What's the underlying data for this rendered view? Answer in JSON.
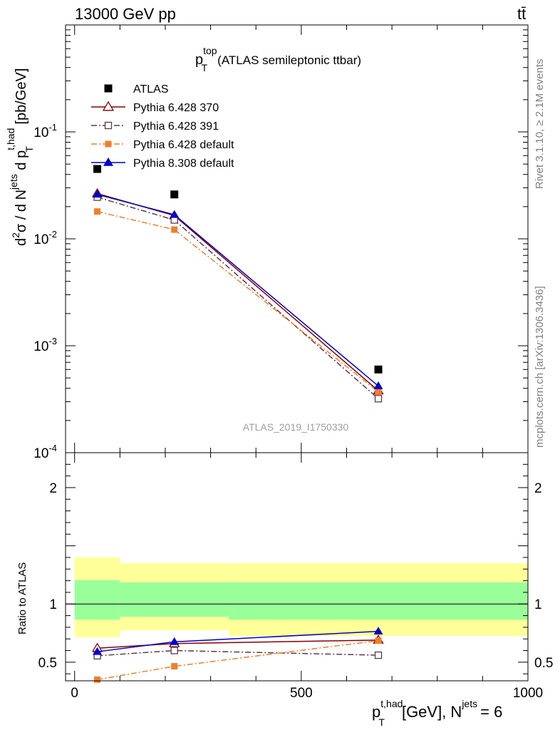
{
  "header": {
    "left": "13000 GeV pp",
    "right": "tt̄"
  },
  "side_labels": {
    "rivet": "Rivet 3.1.10, ≥ 2.1M events",
    "mcplots": "mcplots.cern.ch [arXiv:1306.3436]"
  },
  "chart_data": [
    {
      "type": "line",
      "panel": "main",
      "title_main": "p",
      "title_sub": "T",
      "title_sup": "top",
      "title_rest": "(ATLAS semileptonic ttbar)",
      "ylabel": "d²σ / d N^jets d p_T^t,had [pb/GeV]",
      "yscale": "log",
      "ylim": [
        0.0001,
        1.0
      ],
      "xlim": [
        -20,
        1000
      ],
      "y_tick_labels": [
        "10^-1",
        "10^-2",
        "10^-3",
        "10^-4"
      ],
      "watermark": "ATLAS_2019_I1750330",
      "legend_position": "top-left",
      "x": [
        50,
        220,
        670
      ],
      "series": [
        {
          "name": "ATLAS",
          "color": "#000000",
          "marker": "filled-square",
          "line": "none",
          "values": [
            0.045,
            0.026,
            0.0006
          ]
        },
        {
          "name": "Pythia 6.428 370",
          "color": "#8b0000",
          "marker": "open-triangle",
          "line": "solid",
          "values": [
            0.0265,
            0.0165,
            0.00038
          ]
        },
        {
          "name": "Pythia 6.428 391",
          "color": "#5c3a4a",
          "marker": "open-square",
          "line": "dashdot",
          "values": [
            0.0245,
            0.015,
            0.00032
          ]
        },
        {
          "name": "Pythia 6.428 default",
          "color": "#f07f2a",
          "marker": "filled-square",
          "line": "dashdot",
          "values": [
            0.018,
            0.0122,
            0.00037
          ]
        },
        {
          "name": "Pythia 8.308 default",
          "color": "#0000cc",
          "marker": "filled-triangle",
          "line": "solid",
          "values": [
            0.026,
            0.0168,
            0.00042
          ]
        }
      ]
    },
    {
      "type": "line",
      "panel": "ratio",
      "ylabel": "Ratio to ATLAS",
      "xlabel_main": "p",
      "xlabel_sub": "T",
      "xlabel_sup": "t,had",
      "xlabel_rest": "[GeV], N",
      "xlabel_sup2": "jets",
      "xlabel_end": "= 6",
      "ylim": [
        0.34,
        2.3
      ],
      "xlim": [
        -20,
        1000
      ],
      "x_tick_labels": [
        "0",
        "500",
        "1000"
      ],
      "y_tick_labels": [
        "2",
        "1",
        "0.5"
      ],
      "reference": 1,
      "bands": [
        {
          "x": [
            0,
            100
          ],
          "yellow": [
            0.715,
            1.4
          ],
          "green": [
            0.865,
            1.205
          ]
        },
        {
          "x": [
            100,
            340
          ],
          "yellow": [
            0.775,
            1.35
          ],
          "green": [
            0.89,
            1.185
          ]
        },
        {
          "x": [
            340,
            1000
          ],
          "yellow": [
            0.725,
            1.35
          ],
          "green": [
            0.865,
            1.185
          ]
        }
      ],
      "band_colors": {
        "yellow": "#ffff99",
        "green": "#99ff99"
      },
      "x": [
        50,
        220,
        670
      ],
      "series": [
        {
          "name": "Pythia 6.428 370",
          "color": "#8b0000",
          "marker": "open-triangle",
          "line": "solid",
          "values": [
            0.62,
            0.66,
            0.69
          ]
        },
        {
          "name": "Pythia 6.428 391",
          "color": "#5c3a4a",
          "marker": "open-square",
          "line": "dashdot",
          "values": [
            0.555,
            0.6,
            0.56
          ]
        },
        {
          "name": "Pythia 6.428 default",
          "color": "#f07f2a",
          "marker": "filled-square",
          "line": "dashdot",
          "values": [
            0.35,
            0.465,
            0.685
          ]
        },
        {
          "name": "Pythia 8.308 default",
          "color": "#0000cc",
          "marker": "filled-triangle",
          "line": "solid",
          "values": [
            0.59,
            0.675,
            0.765
          ]
        }
      ]
    }
  ]
}
